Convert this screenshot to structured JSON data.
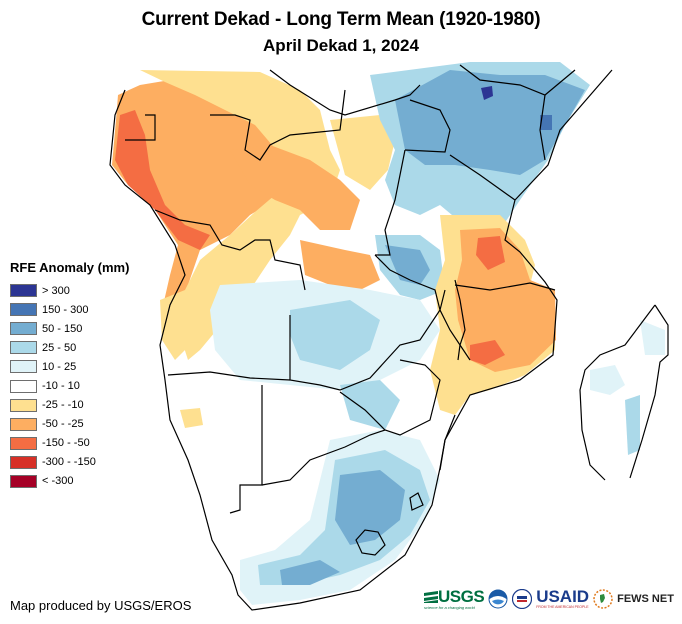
{
  "header": {
    "title": "Current Dekad - Long Term Mean (1920-1980)",
    "subtitle": "April Dekad 1, 2024"
  },
  "legend": {
    "title": "RFE Anomaly (mm)",
    "items": [
      {
        "label": "> 300",
        "color": "#2c3593"
      },
      {
        "label": "150 - 300",
        "color": "#4575b4"
      },
      {
        "label": "50 - 150",
        "color": "#74add1"
      },
      {
        "label": "25 - 50",
        "color": "#abd9e9"
      },
      {
        "label": "10 - 25",
        "color": "#e0f3f8"
      },
      {
        "label": "-10 - 10",
        "color": "#ffffff"
      },
      {
        "label": "-25 - -10",
        "color": "#fee090"
      },
      {
        "label": "-50 - -25",
        "color": "#fdae61"
      },
      {
        "label": "-150 - -50",
        "color": "#f46d43"
      },
      {
        "label": "-300 - -150",
        "color": "#d73027"
      },
      {
        "label": "< -300",
        "color": "#a50026"
      }
    ]
  },
  "map": {
    "region": "Central, East and Southern Africa",
    "variable": "RFE Anomaly (mm)"
  },
  "footer": {
    "credit": "Map produced by USGS/EROS",
    "logos": {
      "usgs": "USGS",
      "usgs_tagline": "science for a changing world",
      "noaa": "NOAA",
      "usaid": "USAID",
      "usaid_tagline": "FROM THE AMERICAN PEOPLE",
      "fews": "FEWS NET"
    }
  }
}
